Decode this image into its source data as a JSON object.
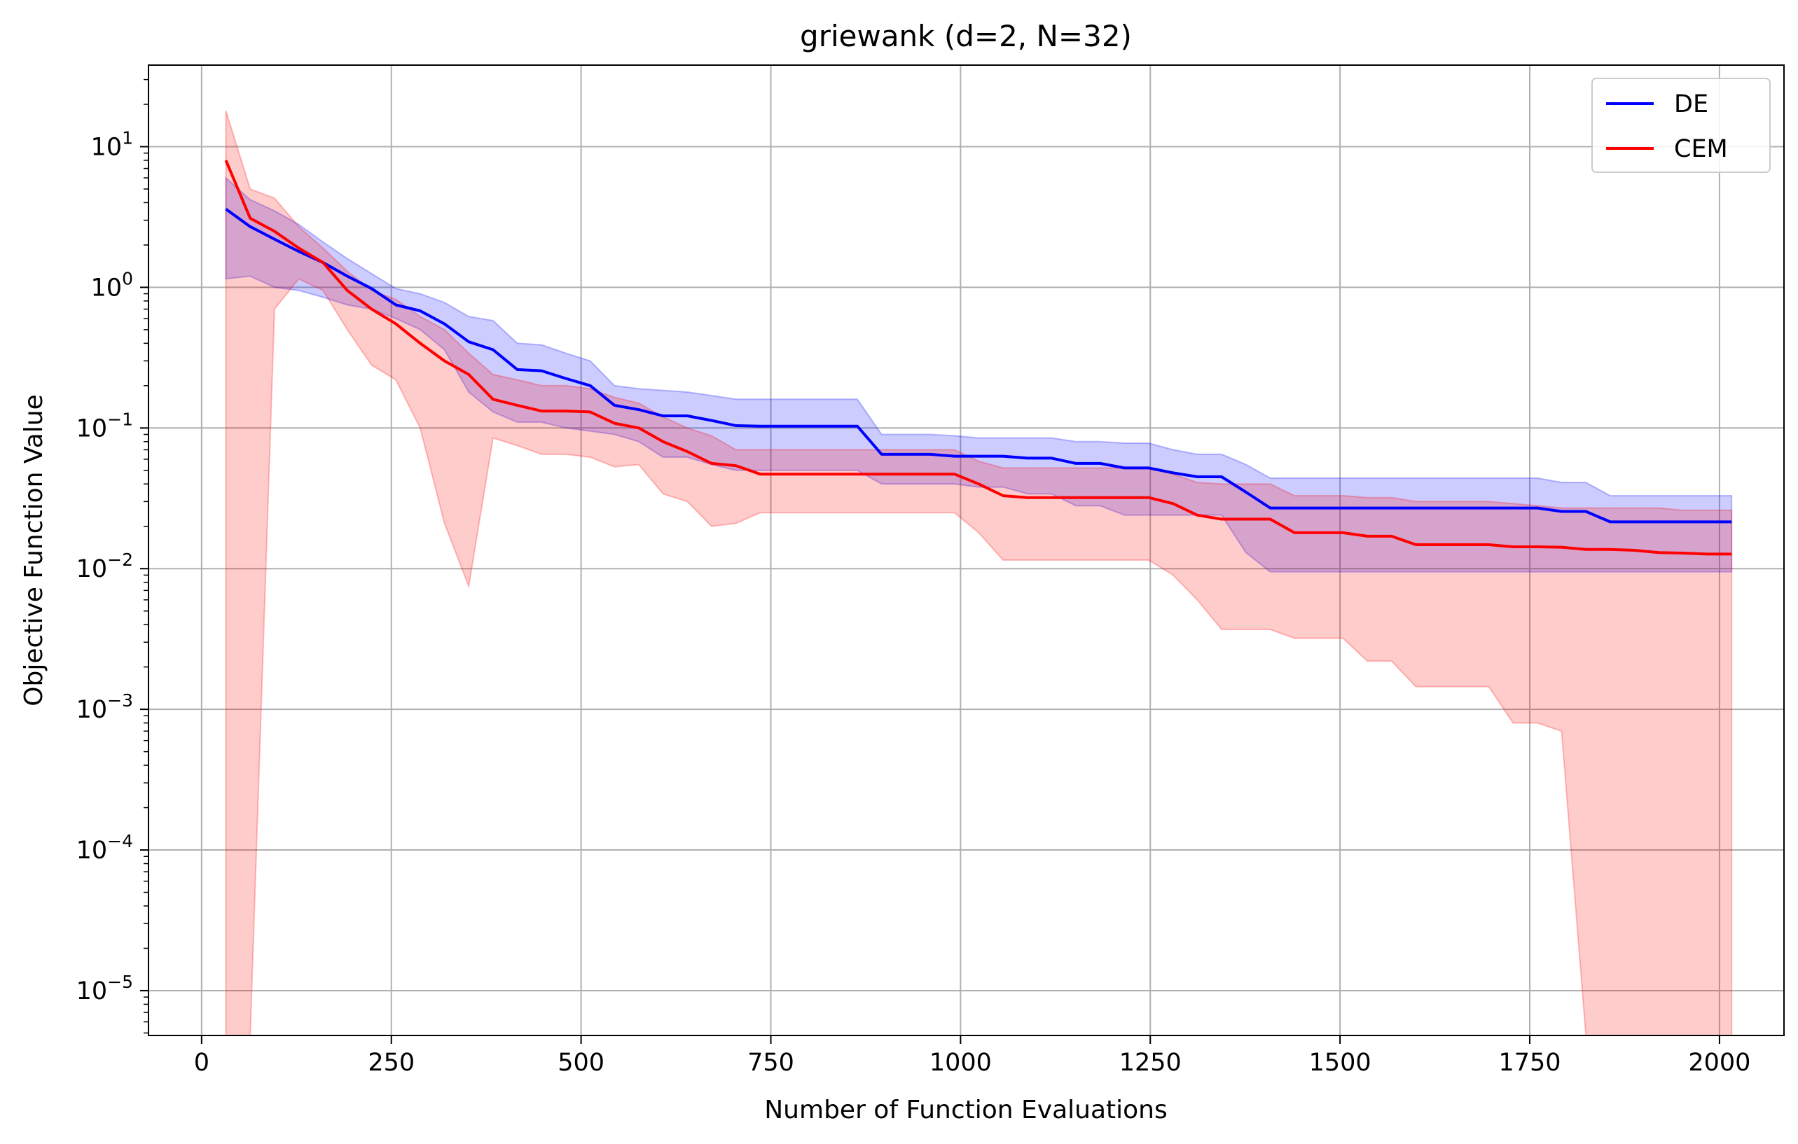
{
  "chart_data": {
    "type": "line",
    "title": "griewank (d=2, N=32)",
    "xlabel": "Number of Function Evaluations",
    "ylabel": "Objective Function Value",
    "yscale": "log",
    "xlim": [
      -70,
      2085
    ],
    "ylim": [
      4.8e-06,
      38
    ],
    "xticks": [
      0,
      250,
      500,
      750,
      1000,
      1250,
      1500,
      1750,
      2000
    ],
    "yticks": [
      {
        "value": 1e-05,
        "base": "10",
        "exp": "−5"
      },
      {
        "value": 0.0001,
        "base": "10",
        "exp": "−4"
      },
      {
        "value": 0.001,
        "base": "10",
        "exp": "−3"
      },
      {
        "value": 0.01,
        "base": "10",
        "exp": "−2"
      },
      {
        "value": 0.1,
        "base": "10",
        "exp": "−1"
      },
      {
        "value": 1,
        "base": "10",
        "exp": "0"
      },
      {
        "value": 10,
        "base": "10",
        "exp": "1"
      }
    ],
    "grid": true,
    "legend_position": "top-right",
    "series": [
      {
        "name": "DE",
        "color": "#0000ff",
        "band_color": "#0000ff",
        "x": [
          32,
          64,
          96,
          128,
          160,
          192,
          224,
          256,
          288,
          320,
          352,
          384,
          416,
          448,
          480,
          512,
          544,
          576,
          608,
          640,
          672,
          704,
          736,
          768,
          800,
          832,
          864,
          896,
          928,
          960,
          992,
          1024,
          1056,
          1088,
          1120,
          1152,
          1184,
          1216,
          1248,
          1280,
          1312,
          1344,
          1376,
          1408,
          1440,
          1472,
          1504,
          1536,
          1568,
          1600,
          1632,
          1664,
          1696,
          1728,
          1760,
          1792,
          1824,
          1856,
          1888,
          1920,
          1952,
          1984,
          2016
        ],
        "mean": [
          3.6,
          2.7,
          2.2,
          1.8,
          1.5,
          1.2,
          0.98,
          0.75,
          0.68,
          0.55,
          0.41,
          0.36,
          0.26,
          0.255,
          0.225,
          0.2,
          0.145,
          0.135,
          0.122,
          0.122,
          0.113,
          0.104,
          0.103,
          0.103,
          0.103,
          0.103,
          0.103,
          0.065,
          0.065,
          0.065,
          0.063,
          0.063,
          0.063,
          0.061,
          0.061,
          0.056,
          0.056,
          0.052,
          0.052,
          0.048,
          0.045,
          0.045,
          0.035,
          0.027,
          0.027,
          0.027,
          0.027,
          0.027,
          0.027,
          0.027,
          0.027,
          0.027,
          0.027,
          0.027,
          0.027,
          0.0255,
          0.0255,
          0.0215,
          0.0215,
          0.0215,
          0.0215,
          0.0215,
          0.0215
        ],
        "upper": [
          6.0,
          4.2,
          3.5,
          2.8,
          2.1,
          1.6,
          1.25,
          0.98,
          0.9,
          0.78,
          0.62,
          0.58,
          0.4,
          0.39,
          0.34,
          0.3,
          0.2,
          0.19,
          0.185,
          0.18,
          0.17,
          0.16,
          0.16,
          0.16,
          0.16,
          0.16,
          0.16,
          0.09,
          0.09,
          0.09,
          0.088,
          0.085,
          0.085,
          0.085,
          0.085,
          0.08,
          0.08,
          0.078,
          0.078,
          0.07,
          0.065,
          0.065,
          0.055,
          0.044,
          0.044,
          0.044,
          0.044,
          0.044,
          0.044,
          0.044,
          0.044,
          0.044,
          0.044,
          0.044,
          0.044,
          0.041,
          0.041,
          0.033,
          0.033,
          0.033,
          0.033,
          0.033,
          0.033
        ],
        "lower": [
          1.15,
          1.2,
          1.0,
          0.95,
          0.85,
          0.75,
          0.7,
          0.6,
          0.5,
          0.36,
          0.18,
          0.13,
          0.11,
          0.11,
          0.1,
          0.095,
          0.09,
          0.08,
          0.062,
          0.062,
          0.055,
          0.05,
          0.05,
          0.05,
          0.05,
          0.05,
          0.05,
          0.04,
          0.04,
          0.04,
          0.04,
          0.038,
          0.038,
          0.034,
          0.034,
          0.028,
          0.028,
          0.024,
          0.024,
          0.024,
          0.024,
          0.024,
          0.013,
          0.0095,
          0.0095,
          0.0095,
          0.0095,
          0.0095,
          0.0095,
          0.0095,
          0.0095,
          0.0095,
          0.0095,
          0.0095,
          0.0095,
          0.0095,
          0.0095,
          0.0095,
          0.0095,
          0.0095,
          0.0095,
          0.0095,
          0.0095
        ]
      },
      {
        "name": "CEM",
        "color": "#ff0000",
        "band_color": "#ff0000",
        "x": [
          32,
          64,
          96,
          128,
          160,
          192,
          224,
          256,
          288,
          320,
          352,
          384,
          416,
          448,
          480,
          512,
          544,
          576,
          608,
          640,
          672,
          704,
          736,
          768,
          800,
          832,
          864,
          896,
          928,
          960,
          992,
          1024,
          1056,
          1088,
          1120,
          1152,
          1184,
          1216,
          1248,
          1280,
          1312,
          1344,
          1376,
          1408,
          1440,
          1472,
          1504,
          1536,
          1568,
          1600,
          1632,
          1664,
          1696,
          1728,
          1760,
          1792,
          1824,
          1856,
          1888,
          1920,
          1952,
          1984,
          2016
        ],
        "mean": [
          8.0,
          3.1,
          2.5,
          1.9,
          1.5,
          0.95,
          0.7,
          0.55,
          0.4,
          0.3,
          0.24,
          0.16,
          0.145,
          0.132,
          0.132,
          0.13,
          0.108,
          0.1,
          0.08,
          0.068,
          0.056,
          0.054,
          0.047,
          0.047,
          0.047,
          0.047,
          0.047,
          0.047,
          0.047,
          0.047,
          0.047,
          0.04,
          0.033,
          0.032,
          0.032,
          0.032,
          0.032,
          0.032,
          0.032,
          0.029,
          0.024,
          0.0225,
          0.0225,
          0.0225,
          0.018,
          0.018,
          0.018,
          0.017,
          0.017,
          0.0148,
          0.0148,
          0.0148,
          0.0148,
          0.0143,
          0.0143,
          0.0142,
          0.0137,
          0.0137,
          0.0135,
          0.013,
          0.0129,
          0.0127,
          0.0127
        ],
        "upper": [
          18.0,
          5.0,
          4.3,
          2.7,
          1.9,
          1.3,
          0.95,
          0.82,
          0.62,
          0.5,
          0.34,
          0.24,
          0.22,
          0.2,
          0.2,
          0.19,
          0.165,
          0.15,
          0.12,
          0.1,
          0.088,
          0.07,
          0.07,
          0.07,
          0.07,
          0.07,
          0.07,
          0.07,
          0.07,
          0.07,
          0.07,
          0.058,
          0.052,
          0.052,
          0.052,
          0.052,
          0.052,
          0.052,
          0.052,
          0.047,
          0.041,
          0.04,
          0.04,
          0.04,
          0.033,
          0.033,
          0.033,
          0.032,
          0.032,
          0.03,
          0.03,
          0.03,
          0.03,
          0.029,
          0.028,
          0.027,
          0.027,
          0.027,
          0.027,
          0.027,
          0.026,
          0.026,
          0.026
        ],
        "lower": [
          4.8e-06,
          4.8e-06,
          0.7,
          1.15,
          0.95,
          0.5,
          0.28,
          0.22,
          0.1,
          0.021,
          0.0075,
          0.085,
          0.075,
          0.065,
          0.065,
          0.062,
          0.053,
          0.055,
          0.034,
          0.03,
          0.02,
          0.021,
          0.025,
          0.025,
          0.025,
          0.025,
          0.025,
          0.025,
          0.025,
          0.025,
          0.025,
          0.018,
          0.0115,
          0.0115,
          0.0115,
          0.0115,
          0.0115,
          0.0115,
          0.0115,
          0.009,
          0.006,
          0.0037,
          0.0037,
          0.0037,
          0.0032,
          0.0032,
          0.0032,
          0.0022,
          0.0022,
          0.00145,
          0.00145,
          0.00145,
          0.00145,
          0.0008,
          0.0008,
          0.0007,
          4.8e-06,
          4.8e-06,
          4.8e-06,
          4.8e-06,
          4.8e-06,
          4.8e-06,
          4.8e-06
        ]
      }
    ]
  }
}
